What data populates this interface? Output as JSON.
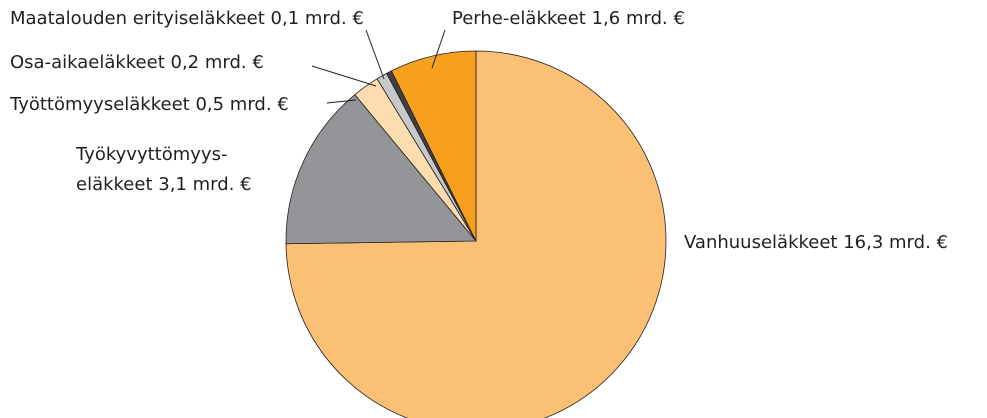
{
  "chart_data": {
    "type": "pie",
    "categories": [
      "Vanhuuseläkkeet",
      "Työkyvyttömyys-\neläkkeet",
      "Työttömyyseläkkeet",
      "Osa-aikaeläkkeet",
      "Maatalouden erityiseläkkeet",
      "Perhe-eläkkeet"
    ],
    "values": [
      16.3,
      3.1,
      0.5,
      0.2,
      0.1,
      1.6
    ],
    "value_labels": [
      "16,3 mrd. €",
      "3,1 mrd. €",
      "0,5 mrd. €",
      "0,2 mrd. €",
      "0,1 mrd. €",
      "1,6 mrd. €"
    ],
    "colors": [
      "#fbc074",
      "#939598",
      "#fddcb0",
      "#c7c8ca",
      "#414042",
      "#f7a01d"
    ]
  }
}
